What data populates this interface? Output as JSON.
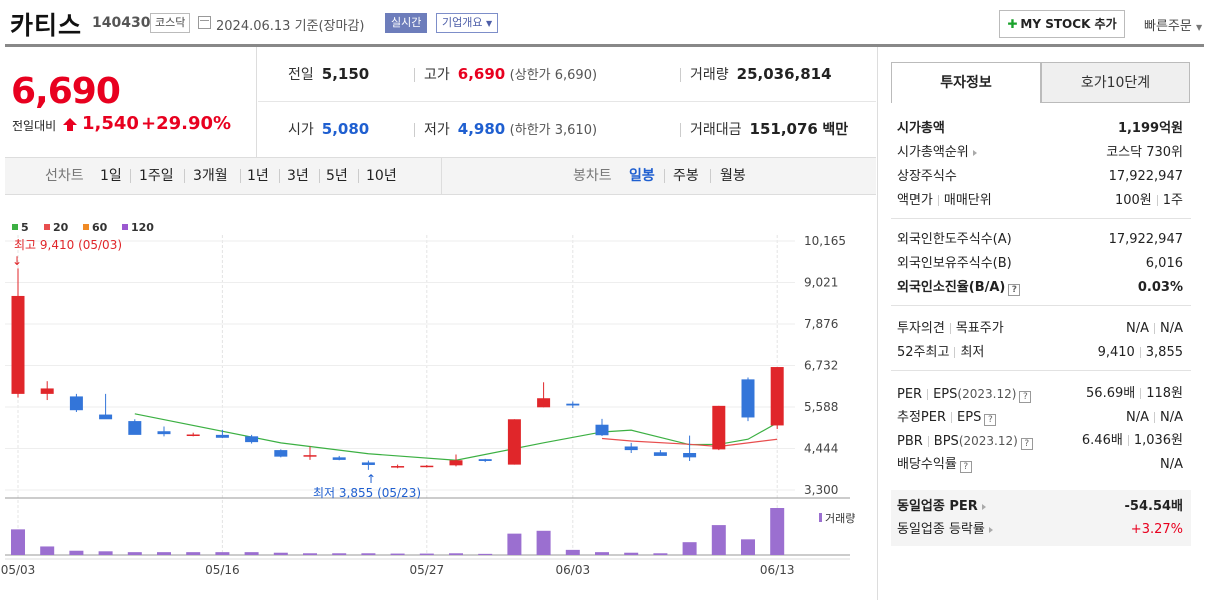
{
  "header": {
    "name": "카티스",
    "code": "140430",
    "market": "코스닥",
    "date_text": "2024.06.13 기준(장마감)",
    "realtime_label": "실시간",
    "corp_label": "기업개요",
    "mystock_label": "MY STOCK 추가",
    "quick_order_label": "빠른주문"
  },
  "price": {
    "current": "6,690",
    "change_label": "전일대비",
    "change": "1,540",
    "change_pct": "+29.90%"
  },
  "quote": {
    "prev_label": "전일",
    "prev": "5,150",
    "high_label": "고가",
    "high": "6,690",
    "upper_limit": "(상한가 6,690)",
    "volume_label": "거래량",
    "volume": "25,036,814",
    "open_label": "시가",
    "open": "5,080",
    "low_label": "저가",
    "low": "4,980",
    "lower_limit": "(하한가 3,610)",
    "amount_label": "거래대금",
    "amount": "151,076",
    "amount_unit": "백만"
  },
  "chart_tabs": {
    "line_label": "선차트",
    "periods": [
      "1일",
      "1주일",
      "3개월",
      "1년",
      "3년",
      "5년",
      "10년"
    ],
    "candle_label": "봉차트",
    "candles": [
      "일봉",
      "주봉",
      "월봉"
    ],
    "active_candle": "일봉"
  },
  "chart_data": {
    "type": "candlestick",
    "legend": [
      {
        "name": "5",
        "color": "#3cb043"
      },
      {
        "name": "20",
        "color": "#e84e4e"
      },
      {
        "name": "60",
        "color": "#f08a24"
      },
      {
        "name": "120",
        "color": "#9b59d0"
      }
    ],
    "y_ticks": [
      "10,165",
      "9,021",
      "7,876",
      "6,732",
      "5,588",
      "4,444",
      "3,300"
    ],
    "ylim": [
      3300,
      10165
    ],
    "x_ticks": [
      {
        "label": "05/03",
        "index": 0
      },
      {
        "label": "05/16",
        "index": 7
      },
      {
        "label": "05/27",
        "index": 14
      },
      {
        "label": "06/03",
        "index": 19
      },
      {
        "label": "06/13",
        "index": 26
      }
    ],
    "high_annotation": "최고 9,410 (05/03)",
    "low_annotation": "최저 3,855 (05/23)",
    "volume_label": "거래량",
    "candles": [
      {
        "o": 5950,
        "h": 9410,
        "l": 5850,
        "c": 8650
      },
      {
        "o": 5950,
        "h": 6300,
        "l": 5780,
        "c": 6100
      },
      {
        "o": 5880,
        "h": 5950,
        "l": 5450,
        "c": 5500
      },
      {
        "o": 5380,
        "h": 5950,
        "l": 5280,
        "c": 5250
      },
      {
        "o": 5200,
        "h": 5250,
        "l": 4850,
        "c": 4820
      },
      {
        "o": 4920,
        "h": 5050,
        "l": 4780,
        "c": 4840
      },
      {
        "o": 4820,
        "h": 4880,
        "l": 4780,
        "c": 4830
      },
      {
        "o": 4820,
        "h": 4960,
        "l": 4730,
        "c": 4740
      },
      {
        "o": 4780,
        "h": 4820,
        "l": 4580,
        "c": 4620
      },
      {
        "o": 4400,
        "h": 4420,
        "l": 4200,
        "c": 4220
      },
      {
        "o": 4260,
        "h": 4500,
        "l": 4130,
        "c": 4260
      },
      {
        "o": 4200,
        "h": 4240,
        "l": 4120,
        "c": 4130
      },
      {
        "o": 4060,
        "h": 4110,
        "l": 3855,
        "c": 3990
      },
      {
        "o": 3950,
        "h": 4000,
        "l": 3900,
        "c": 3960
      },
      {
        "o": 3960,
        "h": 3990,
        "l": 3920,
        "c": 3970
      },
      {
        "o": 3980,
        "h": 4280,
        "l": 3950,
        "c": 4120
      },
      {
        "o": 4150,
        "h": 4160,
        "l": 4070,
        "c": 4100
      },
      {
        "o": 4000,
        "h": 5250,
        "l": 4000,
        "c": 5250
      },
      {
        "o": 5580,
        "h": 6270,
        "l": 5580,
        "c": 5830
      },
      {
        "o": 5680,
        "h": 5740,
        "l": 5560,
        "c": 5630
      },
      {
        "o": 5100,
        "h": 5260,
        "l": 4790,
        "c": 4810
      },
      {
        "o": 4500,
        "h": 4600,
        "l": 4320,
        "c": 4400
      },
      {
        "o": 4340,
        "h": 4400,
        "l": 4250,
        "c": 4240
      },
      {
        "o": 4320,
        "h": 4800,
        "l": 4100,
        "c": 4200
      },
      {
        "o": 4420,
        "h": 5620,
        "l": 4400,
        "c": 5620
      },
      {
        "o": 6350,
        "h": 6400,
        "l": 5200,
        "c": 5300
      },
      {
        "o": 5080,
        "h": 6690,
        "l": 4980,
        "c": 6690
      }
    ],
    "ma5": [
      null,
      null,
      null,
      null,
      5400,
      null,
      null,
      null,
      null,
      4600,
      null,
      null,
      4300,
      null,
      null,
      4120,
      null,
      null,
      4600,
      null,
      4900,
      4950,
      null,
      4550,
      4560,
      4700,
      5150
    ],
    "ma20": [
      null,
      null,
      null,
      null,
      null,
      null,
      null,
      null,
      null,
      null,
      null,
      null,
      null,
      null,
      null,
      null,
      null,
      null,
      null,
      null,
      4720,
      4650,
      null,
      4560,
      4500,
      4600,
      4700
    ],
    "volume": [
      9,
      3,
      1.5,
      1.3,
      1,
      1,
      1,
      1,
      1,
      0.8,
      0.6,
      0.6,
      0.6,
      0.5,
      0.5,
      0.6,
      0.4,
      7.5,
      8.5,
      1.8,
      1,
      0.8,
      0.6,
      4.5,
      10.5,
      5.5,
      16.5
    ]
  },
  "invest": {
    "tab_active": "투자정보",
    "tab_other": "호가10단계",
    "market_cap_label": "시가총액",
    "market_cap": "1,199억원",
    "rank_label": "시가총액순위",
    "rank": "코스닥 730위",
    "shares_label": "상장주식수",
    "shares": "17,922,947",
    "par_label": "액면가",
    "unit_label": "매매단위",
    "par": "100원",
    "unit": "1주",
    "foreign_limit_label": "외국인한도주식수(A)",
    "foreign_limit": "17,922,947",
    "foreign_hold_label": "외국인보유주식수(B)",
    "foreign_hold": "6,016",
    "foreign_ratio_label": "외국인소진율(B/A)",
    "foreign_ratio": "0.03%",
    "opinion_label": "투자의견",
    "target_label": "목표주가",
    "opinion": "N/A",
    "target": "N/A",
    "w52_high_label": "52주최고",
    "w52_low_label": "최저",
    "w52_high": "9,410",
    "w52_low": "3,855",
    "per_label": "PER",
    "eps_label": "EPS",
    "eps_year": "(2023.12)",
    "per": "56.69배",
    "eps": "118원",
    "est_per_label": "추정PER",
    "est_eps_label": "EPS",
    "est_per": "N/A",
    "est_eps": "N/A",
    "pbr_label": "PBR",
    "bps_label": "BPS",
    "bps_year": "(2023.12)",
    "pbr": "6.46배",
    "bps": "1,036원",
    "div_label": "배당수익률",
    "div": "N/A",
    "peer_per_label": "동일업종 PER",
    "peer_per": "-54.54배",
    "peer_chg_label": "동일업종 등락률",
    "peer_chg": "+3.27%"
  }
}
